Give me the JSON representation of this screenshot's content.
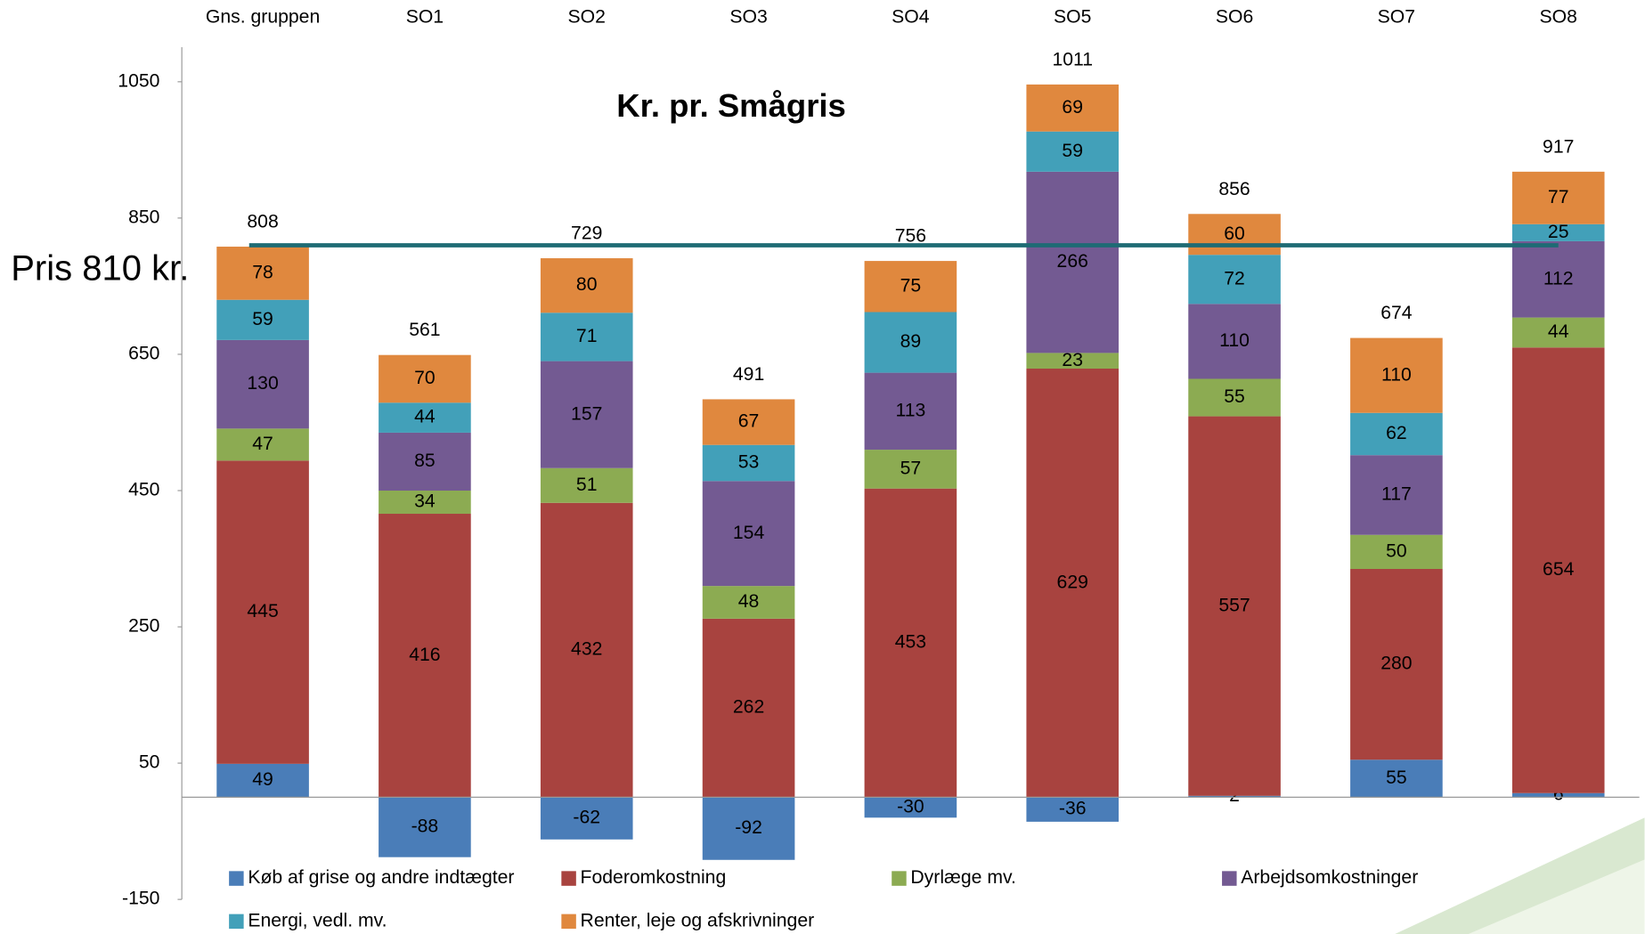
{
  "chart_data": {
    "type": "stacked_bar",
    "title": "Kr. pr. Smågris",
    "categories": [
      "Gns. gruppen",
      "SO1",
      "SO2",
      "SO3",
      "SO4",
      "SO5",
      "SO6",
      "SO7",
      "SO8"
    ],
    "series": [
      {
        "name": "Køb af grise og andre indtægter",
        "color": "#4a7db8",
        "values": [
          49,
          -88,
          -62,
          -92,
          -30,
          -36,
          2,
          55,
          6
        ]
      },
      {
        "name": "Foderomkostning",
        "color": "#a8433f",
        "values": [
          445,
          416,
          432,
          262,
          453,
          629,
          557,
          280,
          654
        ]
      },
      {
        "name": "Dyrlæge mv.",
        "color": "#8cab52",
        "values": [
          47,
          34,
          51,
          48,
          57,
          23,
          55,
          50,
          44
        ]
      },
      {
        "name": "Arbejdsomkostninger",
        "color": "#735a92",
        "values": [
          130,
          85,
          157,
          154,
          113,
          266,
          110,
          117,
          112
        ]
      },
      {
        "name": "Energi, vedl. mv.",
        "color": "#42a0b9",
        "values": [
          59,
          44,
          71,
          53,
          89,
          59,
          72,
          62,
          25
        ]
      },
      {
        "name": "Renter, leje og afskrivninger",
        "color": "#e0883e",
        "values": [
          78,
          70,
          80,
          67,
          75,
          69,
          60,
          110,
          77
        ]
      }
    ],
    "totals": [
      808,
      561,
      729,
      491,
      756,
      1011,
      856,
      674,
      917
    ],
    "reference_line": {
      "label": "Pris 810 kr.",
      "value": 810,
      "color": "#1e6b74"
    },
    "ylim": [
      -150,
      1050
    ],
    "yticks": [
      -150,
      50,
      250,
      450,
      650,
      850,
      1050
    ]
  }
}
